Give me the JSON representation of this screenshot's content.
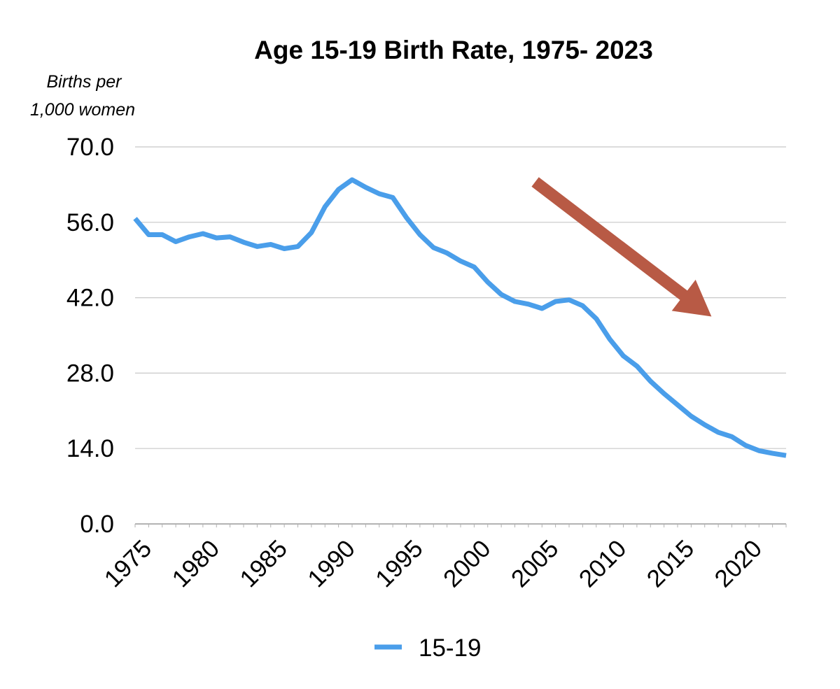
{
  "chart_data": {
    "type": "line",
    "title": "Age 15-19 Birth Rate, 1975- 2023",
    "ylabel": [
      "Births per",
      "1,000 women"
    ],
    "xlabel": "",
    "ylim": [
      0,
      70
    ],
    "yticks": [
      0,
      14,
      28,
      42,
      56,
      70
    ],
    "ytick_labels": [
      "0.0",
      "14.0",
      "28.0",
      "42.0",
      "56.0",
      "70.0"
    ],
    "xlim": [
      1975,
      2023
    ],
    "xticks": [
      1975,
      1980,
      1985,
      1990,
      1995,
      2000,
      2005,
      2010,
      2015,
      2020
    ],
    "xtick_labels": [
      "1975",
      "1980",
      "1985",
      "1990",
      "1995",
      "2000",
      "2005",
      "2010",
      "2015",
      "2020"
    ],
    "grid": true,
    "legend_placement": "bottom-center",
    "colors": {
      "series": "#4a9eea",
      "arrow": "#b85a45"
    },
    "annotation": {
      "type": "arrow",
      "from": [
        2004.5,
        63.5
      ],
      "to": [
        2017.5,
        38.5
      ],
      "color": "#b85a45"
    },
    "series": [
      {
        "name": "15-19",
        "x": [
          1975,
          1976,
          1977,
          1978,
          1979,
          1980,
          1981,
          1982,
          1983,
          1984,
          1985,
          1986,
          1987,
          1988,
          1989,
          1990,
          1991,
          1992,
          1993,
          1994,
          1995,
          1996,
          1997,
          1998,
          1999,
          2000,
          2001,
          2002,
          2003,
          2004,
          2005,
          2006,
          2007,
          2008,
          2009,
          2010,
          2011,
          2012,
          2013,
          2014,
          2015,
          2016,
          2017,
          2018,
          2019,
          2020,
          2021,
          2022,
          2023
        ],
        "values": [
          56.7,
          53.7,
          53.7,
          52.4,
          53.3,
          53.9,
          53.1,
          53.3,
          52.3,
          51.5,
          51.9,
          51.1,
          51.5,
          54.1,
          58.9,
          62.1,
          63.9,
          62.5,
          61.3,
          60.6,
          56.9,
          53.7,
          51.3,
          50.3,
          48.8,
          47.7,
          44.9,
          42.6,
          41.3,
          40.8,
          40.0,
          41.3,
          41.6,
          40.5,
          38.1,
          34.3,
          31.2,
          29.3,
          26.5,
          24.2,
          22.1,
          20.0,
          18.4,
          17.0,
          16.2,
          14.6,
          13.6,
          13.1,
          12.7
        ]
      }
    ]
  }
}
